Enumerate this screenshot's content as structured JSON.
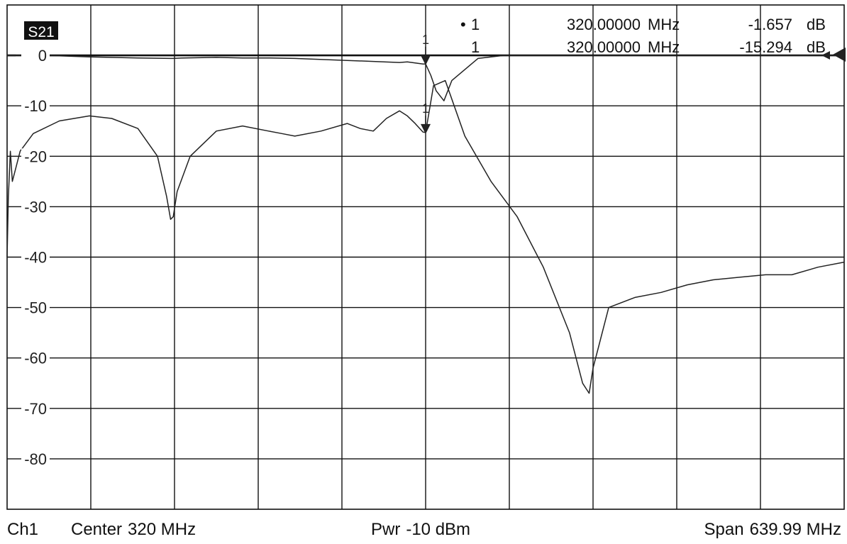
{
  "trace_label": "S21",
  "markers": [
    {
      "marker": "1",
      "freq": "320.00000",
      "freq_unit": "MHz",
      "value": "-1.657",
      "value_unit": "dB",
      "active": true
    },
    {
      "marker": "1",
      "freq": "320.00000",
      "freq_unit": "MHz",
      "value": "-15.294",
      "value_unit": "dB",
      "active": false
    }
  ],
  "footer": {
    "channel": "Ch1",
    "center_label": "Center",
    "center_value": "320 MHz",
    "power_label": "Pwr",
    "power_value": "-10 dBm",
    "span_label": "Span",
    "span_value": "639.99 MHz"
  },
  "colors": {
    "trace": "#222222",
    "grid": "#111111",
    "label_bg": "#111111",
    "label_fg": "#ffffff"
  },
  "chart_data": {
    "type": "line",
    "title": "S21",
    "xlabel": "",
    "ylabel": "",
    "xlim": [
      0.005,
      639.995
    ],
    "ylim": [
      -90,
      10
    ],
    "y_ticks": [
      0,
      -10,
      -20,
      -30,
      -40,
      -50,
      -60,
      -70,
      -80
    ],
    "y_tick_labels": [
      "0",
      "-10",
      "-20",
      "-30",
      "-40",
      "-50",
      "-60",
      "-70",
      "-80"
    ],
    "grid": true,
    "reference_level": 0,
    "series": [
      {
        "x": [
          0.005,
          2.5,
          4,
          6,
          20,
          40,
          63,
          100,
          125,
          127,
          135,
          160,
          180,
          200,
          220,
          260,
          280,
          300,
          306,
          312,
          318,
          320,
          324,
          328,
          334,
          340,
          360,
          380,
          400,
          420,
          440,
          460,
          500,
          540,
          580,
          620,
          639.995
        ],
        "y": [
          0,
          0,
          0,
          0,
          0,
          -0.1,
          -0.3,
          -0.5,
          -0.6,
          -0.6,
          -0.5,
          -0.4,
          -0.5,
          -0.5,
          -0.6,
          -1.0,
          -1.2,
          -1.4,
          -1.3,
          -1.5,
          -1.7,
          -1.7,
          -4,
          -7,
          -9,
          -5,
          -0.6,
          0,
          0,
          0,
          0,
          0,
          0,
          0,
          0,
          0,
          0
        ]
      },
      {
        "x": [
          0.005,
          1,
          2.5,
          4,
          6,
          10,
          20,
          40,
          63,
          80,
          100,
          115,
          122,
          125,
          127,
          130,
          140,
          160,
          180,
          200,
          210,
          220,
          240,
          260,
          270,
          280,
          290,
          300,
          306,
          312,
          318,
          320,
          326,
          335,
          350,
          370,
          390,
          410,
          430,
          440,
          445,
          448,
          452,
          460,
          480,
          500,
          520,
          540,
          560,
          580,
          600,
          620,
          639.995
        ],
        "y": [
          -40,
          -28,
          -19,
          -25,
          -23,
          -19,
          -15.5,
          -13,
          -12,
          -12.5,
          -14.5,
          -20,
          -28,
          -32.5,
          -32,
          -27,
          -20,
          -15,
          -14,
          -15,
          -15.5,
          -16,
          -15,
          -13.5,
          -14.5,
          -15,
          -12.5,
          -11,
          -12,
          -13.5,
          -15.2,
          -15.3,
          -6,
          -5,
          -16,
          -25,
          -32,
          -42,
          -55,
          -65,
          -67,
          -62,
          -58,
          -50,
          -48,
          -47,
          -45.5,
          -44.5,
          -44,
          -43.5,
          -43.5,
          -42,
          -41
        ]
      }
    ],
    "marker_x": 320
  }
}
